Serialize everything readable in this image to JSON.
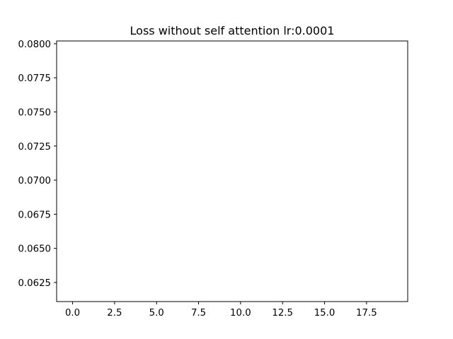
{
  "chart_data": {
    "type": "line",
    "title": "Loss without self attention lr:0.0001",
    "xlabel": "",
    "ylabel": "",
    "xlim": [
      -0.95,
      19.95
    ],
    "ylim": [
      0.0611,
      0.0802
    ],
    "x_ticks": [
      0.0,
      2.5,
      5.0,
      7.5,
      10.0,
      12.5,
      15.0,
      17.5
    ],
    "x_tick_labels": [
      "0.0",
      "2.5",
      "5.0",
      "7.5",
      "10.0",
      "12.5",
      "15.0",
      "17.5"
    ],
    "y_ticks": [
      0.0625,
      0.065,
      0.0675,
      0.07,
      0.0725,
      0.075,
      0.0775,
      0.08
    ],
    "y_tick_labels": [
      "0.0625",
      "0.0650",
      "0.0675",
      "0.0700",
      "0.0725",
      "0.0750",
      "0.0775",
      "0.0800"
    ],
    "grid": false,
    "series": [
      {
        "x": [],
        "y": []
      }
    ],
    "colors": {
      "axes": "#000000",
      "background": "#ffffff"
    }
  }
}
